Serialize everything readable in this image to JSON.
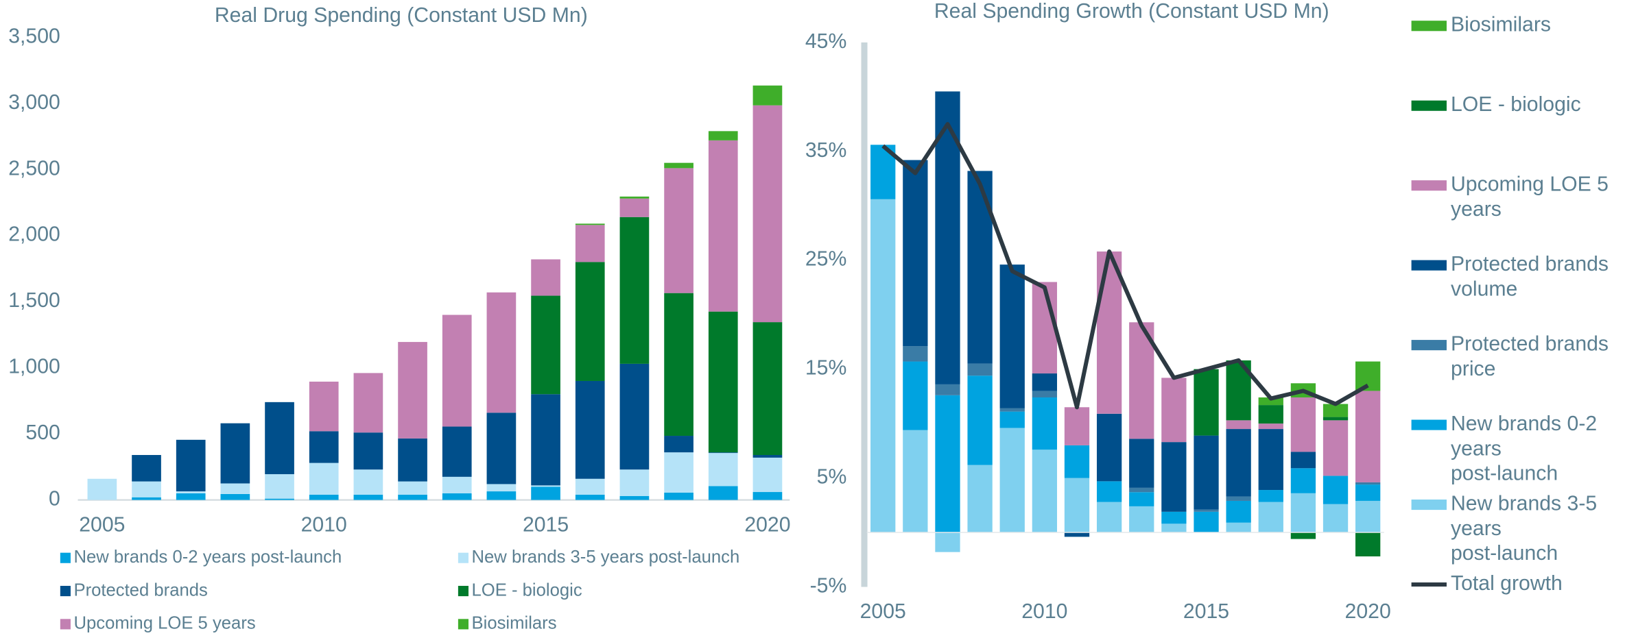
{
  "chart_data": [
    {
      "type": "bar",
      "stacked": true,
      "title": "Real Drug Spending (Constant USD Mn)",
      "categories": [
        "2005",
        null,
        null,
        null,
        null,
        "2010",
        null,
        null,
        null,
        null,
        "2015",
        null,
        null,
        null,
        null,
        "2020"
      ],
      "ylim": [
        0,
        3500
      ],
      "yticks": [
        0,
        500,
        {
          "value": 1000,
          "label": "1,000"
        },
        {
          "value": 1500,
          "label": "1,500"
        },
        {
          "value": 2000,
          "label": "2,000"
        },
        {
          "value": 2500,
          "label": "2,500"
        },
        {
          "value": 3000,
          "label": "3,000"
        },
        {
          "value": 3500,
          "label": "3,500"
        }
      ],
      "grid": false,
      "legend": "bottom",
      "series": [
        {
          "name": "New brands 0-2 years post-launch",
          "color": "#00a3e0",
          "values": [
            0,
            20,
            50,
            45,
            10,
            40,
            40,
            40,
            50,
            65,
            100,
            40,
            30,
            55,
            105,
            60
          ]
        },
        {
          "name": "New brands 3-5 years post-launch",
          "color": "#b5e3f8",
          "values": [
            160,
            120,
            15,
            80,
            185,
            240,
            190,
            100,
            125,
            55,
            10,
            120,
            200,
            305,
            250,
            260
          ]
        },
        {
          "name": "Protected brands",
          "color": "#004f8b",
          "values": [
            0,
            200,
            390,
            455,
            545,
            240,
            280,
            325,
            380,
            540,
            690,
            740,
            800,
            125,
            5,
            20
          ]
        },
        {
          "name": "LOE - biologic",
          "color": "#007a2b",
          "values": [
            0,
            0,
            0,
            0,
            0,
            0,
            0,
            0,
            0,
            0,
            745,
            900,
            1110,
            1080,
            1065,
            1005
          ]
        },
        {
          "name": "Upcoming LOE 5 years",
          "color": "#c280b2",
          "values": [
            0,
            0,
            0,
            0,
            0,
            375,
            450,
            730,
            845,
            910,
            275,
            280,
            140,
            945,
            1295,
            1640
          ]
        },
        {
          "name": "Biosimilars",
          "color": "#3fae2a",
          "values": [
            0,
            0,
            0,
            0,
            0,
            0,
            0,
            0,
            0,
            0,
            0,
            10,
            15,
            40,
            70,
            150
          ]
        }
      ]
    },
    {
      "type": "bar",
      "stacked": true,
      "title": "Real Spending Growth (Constant USD Mn)",
      "categories": [
        "2005",
        null,
        null,
        null,
        null,
        "2010",
        null,
        null,
        null,
        null,
        "2015",
        null,
        null,
        null,
        null,
        "2020"
      ],
      "ylim": [
        -5,
        45
      ],
      "yticks": [
        {
          "value": -5,
          "label": "-5%"
        },
        {
          "value": 5,
          "label": "5%"
        },
        {
          "value": 15,
          "label": "15%"
        },
        {
          "value": 25,
          "label": "25%"
        },
        {
          "value": 35,
          "label": "35%"
        },
        {
          "value": 45,
          "label": "45%"
        }
      ],
      "grid": false,
      "legend": "right",
      "series": [
        {
          "name": "New brands 3-5 years post-launch",
          "color": "#7fd0ef",
          "values": [
            30.6,
            9.4,
            -1.8,
            6.2,
            9.6,
            7.6,
            5.0,
            2.8,
            2.4,
            0.8,
            0,
            0.9,
            2.8,
            3.6,
            2.6,
            2.9
          ]
        },
        {
          "name": "New brands 0-2 years post-launch",
          "color": "#00a3e0",
          "values": [
            5.0,
            6.3,
            12.6,
            8.2,
            1.5,
            4.8,
            3.0,
            1.9,
            1.3,
            1.1,
            1.9,
            2.0,
            1.1,
            2.3,
            2.6,
            1.5
          ]
        },
        {
          "name": "Protected brands price",
          "color": "#3a7ca6",
          "values": [
            0,
            1.4,
            1.0,
            1.1,
            0.3,
            0.6,
            0,
            0,
            0.4,
            0,
            0.2,
            0.4,
            0,
            0,
            0,
            0.2
          ]
        },
        {
          "name": "Protected brands volume",
          "color": "#004f8b",
          "values": [
            0,
            17.1,
            26.9,
            17.7,
            13.2,
            1.6,
            -0.4,
            6.2,
            4.5,
            6.4,
            6.8,
            6.2,
            5.6,
            1.5,
            0,
            0
          ]
        },
        {
          "name": "Upcoming LOE 5 years",
          "color": "#c280b2",
          "values": [
            0,
            0,
            0,
            0,
            0,
            8.4,
            3.5,
            14.9,
            10.7,
            5.9,
            0,
            0.8,
            0.5,
            5.0,
            5.1,
            8.4
          ]
        },
        {
          "name": "LOE - biologic",
          "color": "#007a2b",
          "values": [
            0,
            0,
            0,
            0,
            0,
            0,
            0,
            0,
            0,
            0,
            6.1,
            5.5,
            1.7,
            -0.6,
            0.3,
            -2.2
          ]
        },
        {
          "name": "Biosimilars",
          "color": "#3fae2a",
          "values": [
            0,
            0,
            0,
            0,
            0,
            0,
            0,
            0,
            0,
            0,
            0,
            0,
            0.7,
            1.3,
            1.2,
            2.7
          ]
        },
        {
          "name": "Total growth",
          "type": "line",
          "color": "#2d3a43",
          "values": [
            35.5,
            33,
            37.5,
            32,
            24,
            22.5,
            11.5,
            25.8,
            19,
            14.2,
            15,
            15.8,
            12.3,
            13,
            11.8,
            13.5
          ]
        }
      ]
    }
  ]
}
